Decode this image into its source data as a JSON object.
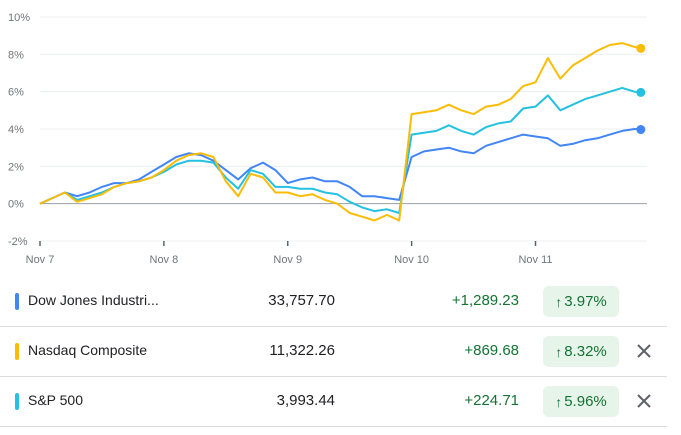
{
  "chart_data": {
    "type": "line",
    "title": "",
    "xlabel": "",
    "ylabel": "",
    "x_tick_labels": [
      "Nov 7",
      "Nov 8",
      "Nov 9",
      "Nov 10",
      "Nov 11"
    ],
    "y_tick_labels": [
      "10%",
      "8%",
      "6%",
      "4%",
      "2%",
      "0%",
      "-2%"
    ],
    "y_ticks": [
      10,
      8,
      6,
      4,
      2,
      0,
      -2
    ],
    "ylim": [
      -2,
      10
    ],
    "x_range": [
      0,
      4.9
    ],
    "grid": true,
    "legend": "none",
    "series": [
      {
        "name": "Dow Jones Industri...",
        "color": "#4285f4",
        "x": [
          0,
          0.1,
          0.2,
          0.3,
          0.4,
          0.5,
          0.6,
          0.7,
          0.8,
          0.9,
          1.0,
          1.1,
          1.2,
          1.3,
          1.4,
          1.5,
          1.6,
          1.7,
          1.8,
          1.9,
          2.0,
          2.1,
          2.2,
          2.3,
          2.4,
          2.5,
          2.6,
          2.7,
          2.8,
          2.9,
          3.0,
          3.1,
          3.2,
          3.3,
          3.4,
          3.5,
          3.6,
          3.7,
          3.8,
          3.9,
          4.0,
          4.1,
          4.2,
          4.3,
          4.4,
          4.5,
          4.6,
          4.7,
          4.8,
          4.85
        ],
        "values": [
          0,
          0.3,
          0.6,
          0.4,
          0.6,
          0.9,
          1.1,
          1.1,
          1.3,
          1.7,
          2.1,
          2.5,
          2.7,
          2.6,
          2.3,
          1.8,
          1.3,
          1.9,
          2.2,
          1.8,
          1.1,
          1.3,
          1.4,
          1.2,
          1.2,
          0.9,
          0.4,
          0.4,
          0.3,
          0.2,
          2.5,
          2.8,
          2.9,
          3.0,
          2.8,
          2.7,
          3.1,
          3.3,
          3.5,
          3.7,
          3.6,
          3.5,
          3.1,
          3.2,
          3.4,
          3.5,
          3.7,
          3.9,
          4.0,
          3.97
        ]
      },
      {
        "name": "Nasdaq Composite",
        "color": "#fbbc04",
        "x": [
          0,
          0.1,
          0.2,
          0.3,
          0.4,
          0.5,
          0.6,
          0.7,
          0.8,
          0.9,
          1.0,
          1.1,
          1.2,
          1.3,
          1.4,
          1.5,
          1.6,
          1.7,
          1.8,
          1.9,
          2.0,
          2.1,
          2.2,
          2.3,
          2.4,
          2.5,
          2.6,
          2.7,
          2.8,
          2.9,
          3.0,
          3.1,
          3.2,
          3.3,
          3.4,
          3.5,
          3.6,
          3.7,
          3.8,
          3.9,
          4.0,
          4.1,
          4.2,
          4.3,
          4.4,
          4.5,
          4.6,
          4.7,
          4.8,
          4.85
        ],
        "values": [
          0,
          0.3,
          0.6,
          0.1,
          0.3,
          0.5,
          0.9,
          1.1,
          1.2,
          1.4,
          1.8,
          2.3,
          2.6,
          2.7,
          2.5,
          1.2,
          0.4,
          1.6,
          1.4,
          0.6,
          0.6,
          0.4,
          0.5,
          0.2,
          0.0,
          -0.5,
          -0.7,
          -0.9,
          -0.6,
          -0.9,
          4.8,
          4.9,
          5.0,
          5.3,
          5.0,
          4.8,
          5.2,
          5.3,
          5.6,
          6.3,
          6.5,
          7.8,
          6.7,
          7.4,
          7.8,
          8.2,
          8.5,
          8.6,
          8.4,
          8.32
        ]
      },
      {
        "name": "S&P 500",
        "color": "#24c1e0",
        "x": [
          0,
          0.1,
          0.2,
          0.3,
          0.4,
          0.5,
          0.6,
          0.7,
          0.8,
          0.9,
          1.0,
          1.1,
          1.2,
          1.3,
          1.4,
          1.5,
          1.6,
          1.7,
          1.8,
          1.9,
          2.0,
          2.1,
          2.2,
          2.3,
          2.4,
          2.5,
          2.6,
          2.7,
          2.8,
          2.9,
          3.0,
          3.1,
          3.2,
          3.3,
          3.4,
          3.5,
          3.6,
          3.7,
          3.8,
          3.9,
          4.0,
          4.1,
          4.2,
          4.3,
          4.4,
          4.5,
          4.6,
          4.7,
          4.8,
          4.85
        ],
        "values": [
          0,
          0.3,
          0.6,
          0.2,
          0.4,
          0.6,
          0.9,
          1.1,
          1.2,
          1.4,
          1.7,
          2.1,
          2.3,
          2.3,
          2.2,
          1.4,
          0.8,
          1.8,
          1.6,
          0.9,
          0.9,
          0.8,
          0.8,
          0.6,
          0.5,
          0.1,
          -0.2,
          -0.4,
          -0.3,
          -0.5,
          3.7,
          3.8,
          3.9,
          4.2,
          3.9,
          3.7,
          4.1,
          4.3,
          4.4,
          5.1,
          5.2,
          5.8,
          5.0,
          5.3,
          5.6,
          5.8,
          6.0,
          6.2,
          6.0,
          5.96
        ]
      }
    ]
  },
  "rows": [
    {
      "name": "Dow Jones Industri...",
      "price": "33,757.70",
      "change": "+1,289.23",
      "arrow": "↑",
      "pct": "3.97%",
      "color": "#4285f4",
      "removable": false
    },
    {
      "name": "Nasdaq Composite",
      "price": "11,322.26",
      "change": "+869.68",
      "arrow": "↑",
      "pct": "8.32%",
      "color": "#fbbc04",
      "removable": true,
      "close_icon": "close-icon"
    },
    {
      "name": "S&P 500",
      "price": "3,993.44",
      "change": "+224.71",
      "arrow": "↑",
      "pct": "5.96%",
      "color": "#24c1e0",
      "removable": true,
      "close_icon": "close-icon"
    }
  ]
}
